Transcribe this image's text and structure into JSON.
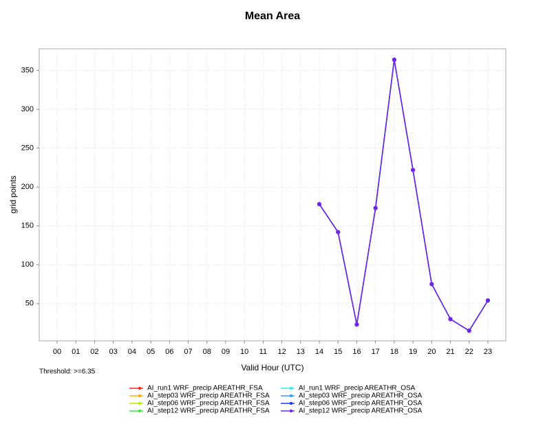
{
  "chart_data": {
    "type": "line",
    "title": "Mean Area",
    "x_label": "Valid Hour (UTC)",
    "y_label": "grid points",
    "annotation": "Threshold: >=6.35",
    "categories": [
      "00",
      "01",
      "02",
      "03",
      "04",
      "05",
      "06",
      "07",
      "08",
      "09",
      "10",
      "11",
      "12",
      "13",
      "14",
      "15",
      "16",
      "17",
      "18",
      "19",
      "20",
      "21",
      "22",
      "23"
    ],
    "ylim": [
      2,
      378
    ],
    "yticks": [
      50,
      100,
      150,
      200,
      250,
      300,
      350
    ],
    "grid": true,
    "legend": "bottom",
    "series": [
      {
        "name": "AI_run1 WRF_precip AREATHR_FSA",
        "color": "#ff2020",
        "values": [
          null,
          null,
          null,
          null,
          null,
          null,
          null,
          null,
          null,
          null,
          null,
          null,
          null,
          null,
          178,
          142,
          23,
          173,
          364,
          222,
          75,
          30,
          15,
          54
        ]
      },
      {
        "name": "AI_step03 WRF_precip AREATHR_FSA",
        "color": "#ffaa00",
        "values": [
          null,
          null,
          null,
          null,
          null,
          null,
          null,
          null,
          null,
          null,
          null,
          null,
          null,
          null,
          178,
          142,
          23,
          173,
          364,
          222,
          75,
          30,
          15,
          54
        ]
      },
      {
        "name": "AI_step06 WRF_precip AREATHR_FSA",
        "color": "#bbee00",
        "values": [
          null,
          null,
          null,
          null,
          null,
          null,
          null,
          null,
          null,
          null,
          null,
          null,
          null,
          null,
          178,
          142,
          23,
          173,
          364,
          222,
          75,
          30,
          15,
          54
        ]
      },
      {
        "name": "AI_step12 WRF_precip AREATHR_FSA",
        "color": "#33ee33",
        "values": [
          null,
          null,
          null,
          null,
          null,
          null,
          null,
          null,
          null,
          null,
          null,
          null,
          null,
          null,
          178,
          142,
          23,
          173,
          364,
          222,
          75,
          30,
          15,
          54
        ]
      },
      {
        "name": "AI_run1 WRF_precip AREATHR_OSA",
        "color": "#33eedd",
        "values": [
          null,
          null,
          null,
          null,
          null,
          null,
          null,
          null,
          null,
          null,
          null,
          null,
          null,
          null,
          178,
          142,
          23,
          173,
          364,
          222,
          75,
          30,
          15,
          54
        ]
      },
      {
        "name": "AI_step03 WRF_precip AREATHR_OSA",
        "color": "#3399ff",
        "values": [
          null,
          null,
          null,
          null,
          null,
          null,
          null,
          null,
          null,
          null,
          null,
          null,
          null,
          null,
          178,
          142,
          23,
          173,
          364,
          222,
          75,
          30,
          15,
          54
        ]
      },
      {
        "name": "AI_step06 WRF_precip AREATHR_OSA",
        "color": "#2233ee",
        "values": [
          null,
          null,
          null,
          null,
          null,
          null,
          null,
          null,
          null,
          null,
          null,
          null,
          null,
          null,
          178,
          142,
          23,
          173,
          364,
          222,
          75,
          30,
          15,
          54
        ]
      },
      {
        "name": "AI_step12 WRF_precip AREATHR_OSA",
        "color": "#7722ee",
        "values": [
          null,
          null,
          null,
          null,
          null,
          null,
          null,
          null,
          null,
          null,
          null,
          null,
          null,
          null,
          178,
          142,
          23,
          173,
          364,
          222,
          75,
          30,
          15,
          54
        ]
      }
    ]
  }
}
